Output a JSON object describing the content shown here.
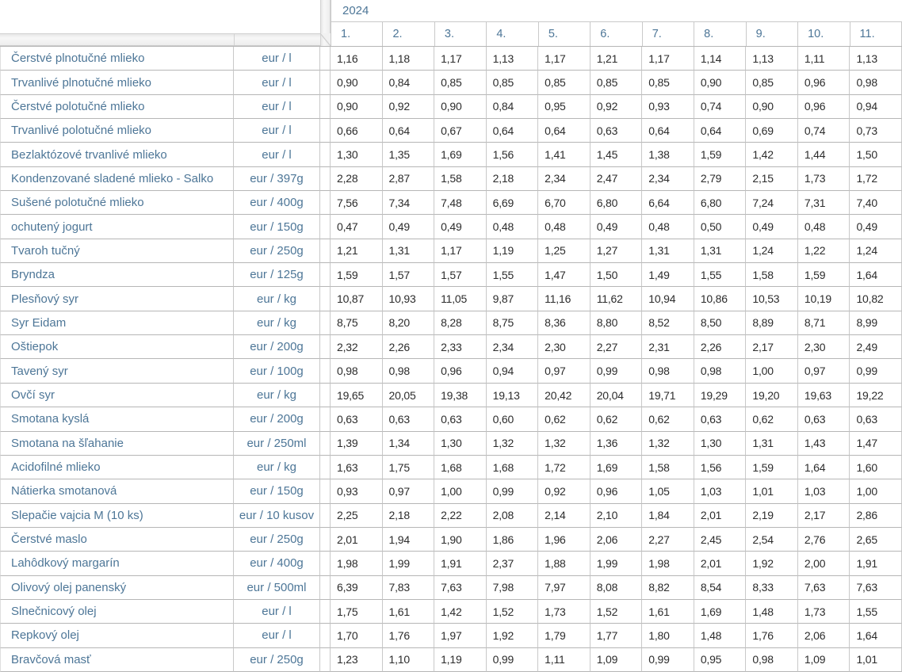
{
  "header": {
    "year": "2024",
    "months": [
      "1.",
      "2.",
      "3.",
      "4.",
      "5.",
      "6.",
      "7.",
      "8.",
      "9.",
      "10.",
      "11."
    ]
  },
  "rows": [
    {
      "name": "Čerstvé plnotučné mlieko",
      "unit": "eur / l",
      "values": [
        "1,16",
        "1,18",
        "1,17",
        "1,13",
        "1,17",
        "1,21",
        "1,17",
        "1,14",
        "1,13",
        "1,11",
        "1,13"
      ]
    },
    {
      "name": "Trvanlivé plnotučné mlieko",
      "unit": "eur / l",
      "values": [
        "0,90",
        "0,84",
        "0,85",
        "0,85",
        "0,85",
        "0,85",
        "0,85",
        "0,90",
        "0,85",
        "0,96",
        "0,98"
      ]
    },
    {
      "name": "Čerstvé polotučné mlieko",
      "unit": "eur / l",
      "values": [
        "0,90",
        "0,92",
        "0,90",
        "0,84",
        "0,95",
        "0,92",
        "0,93",
        "0,74",
        "0,90",
        "0,96",
        "0,94"
      ]
    },
    {
      "name": "Trvanlivé polotučné mlieko",
      "unit": "eur / l",
      "values": [
        "0,66",
        "0,64",
        "0,67",
        "0,64",
        "0,64",
        "0,63",
        "0,64",
        "0,64",
        "0,69",
        "0,74",
        "0,73"
      ]
    },
    {
      "name": "Bezlaktózové trvanlivé mlieko",
      "unit": "eur / l",
      "values": [
        "1,30",
        "1,35",
        "1,69",
        "1,56",
        "1,41",
        "1,45",
        "1,38",
        "1,59",
        "1,42",
        "1,44",
        "1,50"
      ]
    },
    {
      "name": "Kondenzované sladené mlieko - Salko",
      "unit": "eur / 397g",
      "values": [
        "2,28",
        "2,87",
        "1,58",
        "2,18",
        "2,34",
        "2,47",
        "2,34",
        "2,79",
        "2,15",
        "1,73",
        "1,72"
      ]
    },
    {
      "name": "Sušené polotučné mlieko",
      "unit": "eur / 400g",
      "values": [
        "7,56",
        "7,34",
        "7,48",
        "6,69",
        "6,70",
        "6,80",
        "6,64",
        "6,80",
        "7,24",
        "7,31",
        "7,40"
      ]
    },
    {
      "name": "ochutený jogurt",
      "unit": "eur / 150g",
      "values": [
        "0,47",
        "0,49",
        "0,49",
        "0,48",
        "0,48",
        "0,49",
        "0,48",
        "0,50",
        "0,49",
        "0,48",
        "0,49"
      ]
    },
    {
      "name": "Tvaroh tučný",
      "unit": "eur / 250g",
      "values": [
        "1,21",
        "1,31",
        "1,17",
        "1,19",
        "1,25",
        "1,27",
        "1,31",
        "1,31",
        "1,24",
        "1,22",
        "1,24"
      ]
    },
    {
      "name": "Bryndza",
      "unit": "eur / 125g",
      "values": [
        "1,59",
        "1,57",
        "1,57",
        "1,55",
        "1,47",
        "1,50",
        "1,49",
        "1,55",
        "1,58",
        "1,59",
        "1,64"
      ]
    },
    {
      "name": "Plesňový syr",
      "unit": "eur / kg",
      "values": [
        "10,87",
        "10,93",
        "11,05",
        "9,87",
        "11,16",
        "11,62",
        "10,94",
        "10,86",
        "10,53",
        "10,19",
        "10,82"
      ]
    },
    {
      "name": "Syr Eidam",
      "unit": "eur / kg",
      "values": [
        "8,75",
        "8,20",
        "8,28",
        "8,75",
        "8,36",
        "8,80",
        "8,52",
        "8,50",
        "8,89",
        "8,71",
        "8,99"
      ]
    },
    {
      "name": "Oštiepok",
      "unit": "eur / 200g",
      "values": [
        "2,32",
        "2,26",
        "2,33",
        "2,34",
        "2,30",
        "2,27",
        "2,31",
        "2,26",
        "2,17",
        "2,30",
        "2,49"
      ]
    },
    {
      "name": "Tavený syr",
      "unit": "eur / 100g",
      "values": [
        "0,98",
        "0,98",
        "0,96",
        "0,94",
        "0,97",
        "0,99",
        "0,98",
        "0,98",
        "1,00",
        "0,97",
        "0,99"
      ]
    },
    {
      "name": "Ovčí syr",
      "unit": "eur / kg",
      "values": [
        "19,65",
        "20,05",
        "19,38",
        "19,13",
        "20,42",
        "20,04",
        "19,71",
        "19,29",
        "19,20",
        "19,63",
        "19,22"
      ]
    },
    {
      "name": "Smotana kyslá",
      "unit": "eur / 200g",
      "values": [
        "0,63",
        "0,63",
        "0,63",
        "0,60",
        "0,62",
        "0,62",
        "0,62",
        "0,63",
        "0,62",
        "0,63",
        "0,63"
      ]
    },
    {
      "name": "Smotana na šľahanie",
      "unit": "eur / 250ml",
      "values": [
        "1,39",
        "1,34",
        "1,30",
        "1,32",
        "1,32",
        "1,36",
        "1,32",
        "1,30",
        "1,31",
        "1,43",
        "1,47"
      ]
    },
    {
      "name": "Acidofilné mlieko",
      "unit": "eur / kg",
      "values": [
        "1,63",
        "1,75",
        "1,68",
        "1,68",
        "1,72",
        "1,69",
        "1,58",
        "1,56",
        "1,59",
        "1,64",
        "1,60"
      ]
    },
    {
      "name": "Nátierka smotanová",
      "unit": "eur / 150g",
      "values": [
        "0,93",
        "0,97",
        "1,00",
        "0,99",
        "0,92",
        "0,96",
        "1,05",
        "1,03",
        "1,01",
        "1,03",
        "1,00"
      ]
    },
    {
      "name": "Slepačie vajcia M (10 ks)",
      "unit": "eur / 10 kusov",
      "values": [
        "2,25",
        "2,18",
        "2,22",
        "2,08",
        "2,14",
        "2,10",
        "1,84",
        "2,01",
        "2,19",
        "2,17",
        "2,86"
      ]
    },
    {
      "name": "Čerstvé maslo",
      "unit": "eur / 250g",
      "values": [
        "2,01",
        "1,94",
        "1,90",
        "1,86",
        "1,96",
        "2,06",
        "2,27",
        "2,45",
        "2,54",
        "2,76",
        "2,65"
      ]
    },
    {
      "name": "Lahôdkový margarín",
      "unit": "eur / 400g",
      "values": [
        "1,98",
        "1,99",
        "1,91",
        "2,37",
        "1,88",
        "1,99",
        "1,98",
        "2,01",
        "1,92",
        "2,00",
        "1,91"
      ]
    },
    {
      "name": "Olivový olej panenský",
      "unit": "eur / 500ml",
      "values": [
        "6,39",
        "7,83",
        "7,63",
        "7,98",
        "7,97",
        "8,08",
        "8,82",
        "8,54",
        "8,33",
        "7,63",
        "7,63"
      ]
    },
    {
      "name": "Slnečnicový olej",
      "unit": "eur / l",
      "values": [
        "1,75",
        "1,61",
        "1,42",
        "1,52",
        "1,73",
        "1,52",
        "1,61",
        "1,69",
        "1,48",
        "1,73",
        "1,55"
      ]
    },
    {
      "name": "Repkový olej",
      "unit": "eur / l",
      "values": [
        "1,70",
        "1,76",
        "1,97",
        "1,92",
        "1,79",
        "1,77",
        "1,80",
        "1,48",
        "1,76",
        "2,06",
        "1,64"
      ]
    },
    {
      "name": "Bravčová masť",
      "unit": "eur / 250g",
      "values": [
        "1,23",
        "1,10",
        "1,19",
        "0,99",
        "1,11",
        "1,09",
        "0,99",
        "0,95",
        "0,98",
        "1,09",
        "1,01"
      ]
    }
  ],
  "colors": {
    "accent_text_blue": "#4d7697",
    "value_text": "#2c2c2c",
    "gridline_horizontal": "#b6b6b6",
    "gridline_vertical": "#c9c9c9",
    "pane_divider_fill": "#efefef",
    "pane_divider_edge": "#d2d2d2"
  }
}
